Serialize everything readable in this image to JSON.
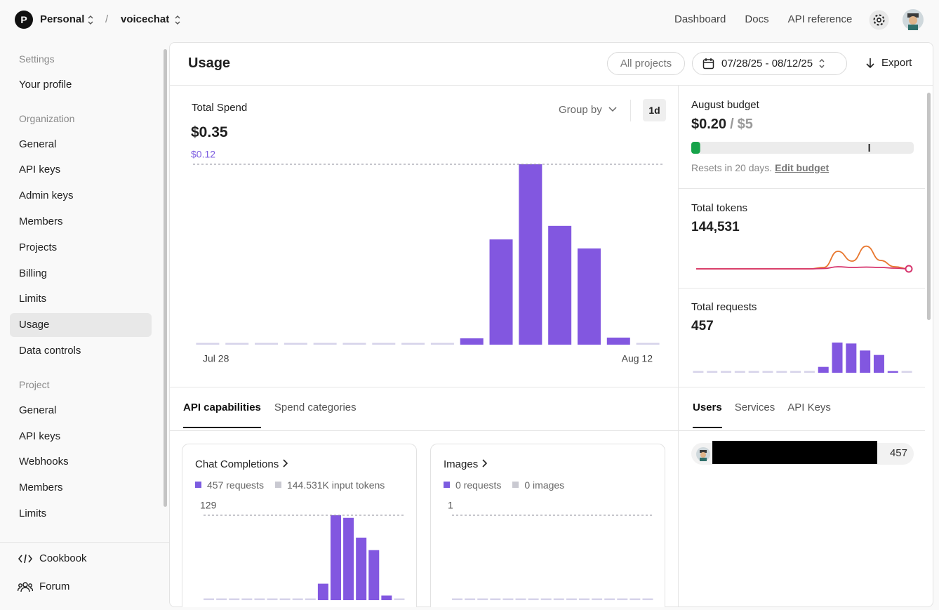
{
  "header": {
    "org_initial": "P",
    "org": "Personal",
    "separator": "/",
    "project": "voicechat",
    "nav": [
      "Dashboard",
      "Docs",
      "API reference"
    ]
  },
  "sidebar": {
    "sections": [
      {
        "label": "Settings",
        "items": [
          "Your profile"
        ]
      },
      {
        "label": "Organization",
        "items": [
          "General",
          "API keys",
          "Admin keys",
          "Members",
          "Projects",
          "Billing",
          "Limits",
          "Usage",
          "Data controls"
        ],
        "active": 7
      },
      {
        "label": "Project",
        "items": [
          "General",
          "API keys",
          "Webhooks",
          "Members",
          "Limits"
        ]
      }
    ],
    "footer": [
      "Cookbook",
      "Forum"
    ]
  },
  "usage": {
    "title": "Usage",
    "project_filter": "All projects",
    "date_range": "07/28/25 - 08/12/25",
    "export": "Export",
    "tabs": {
      "items": [
        "API capabilities",
        "Spend categories"
      ],
      "active": 0
    }
  },
  "budget": {
    "title": "August budget",
    "spent": {
      "value": 0.2,
      "label": "$0.20"
    },
    "separator": "/",
    "limit": {
      "value": 5,
      "label": "$5"
    },
    "alert": 4,
    "note": "Resets in 20 days.",
    "action": "Edit budget"
  },
  "users_panel": {
    "tabs": {
      "items": [
        "Users",
        "Services",
        "API Keys"
      ],
      "active": 0
    },
    "rows": [
      {
        "requests": "457"
      }
    ]
  },
  "chart_data": [
    {
      "type": "bar",
      "title": "Total Spend",
      "total": "$0.35",
      "group_by": "Group by",
      "interval": "1d",
      "categories": [
        "Jul 28",
        null,
        null,
        null,
        null,
        null,
        null,
        null,
        null,
        null,
        null,
        null,
        null,
        null,
        null,
        "Aug 12"
      ],
      "values": [
        0,
        0,
        0,
        0,
        0,
        0,
        0,
        0,
        0,
        0.0042,
        0.07,
        0.12,
        0.079,
        0.064,
        0.0047,
        0
      ],
      "color": "#8257e0",
      "zero_color": "#d6d3ea",
      "ylim": [
        0,
        0.12
      ],
      "yticks": [
        {
          "value": 0.12,
          "label": "$0.12"
        }
      ],
      "tick_color": "#7c5ce0"
    },
    {
      "type": "line",
      "title": "Total tokens",
      "total": "144,531",
      "ylim": [
        0,
        60000
      ],
      "series": [
        {
          "color": "#e8762d",
          "values": [
            0,
            0,
            0,
            0,
            0,
            0,
            0,
            0,
            0,
            3000,
            37500,
            16500,
            48500,
            18000,
            4500,
            0
          ]
        },
        {
          "color": "#d6336c",
          "values": [
            0,
            0,
            0,
            0,
            0,
            0,
            0,
            0,
            0,
            750,
            4500,
            3000,
            3750,
            3000,
            1500,
            0
          ]
        }
      ]
    },
    {
      "type": "bar",
      "title": "Total requests",
      "total": "457",
      "values": [
        0,
        0,
        0,
        0,
        0,
        0,
        0,
        0,
        0,
        25,
        129,
        125,
        95,
        76,
        7,
        0
      ],
      "color": "#8257e0",
      "zero_color": "#d6d3ea",
      "ylim": [
        0,
        129
      ]
    },
    {
      "type": "bar",
      "title": "Chat Completions",
      "legend": [
        {
          "label": "457 requests",
          "color": "#7c5ce0"
        },
        {
          "label": "144.531K input tokens",
          "color": "#c9c9d1"
        }
      ],
      "values": [
        0,
        0,
        0,
        0,
        0,
        0,
        0,
        0,
        0,
        25,
        129,
        125,
        95,
        76,
        7,
        0
      ],
      "color": "#8257e0",
      "zero_color": "#d6d3ea",
      "ylim": [
        0,
        129
      ],
      "yticks": [
        129
      ],
      "tick_color": "#555555"
    },
    {
      "type": "bar",
      "title": "Images",
      "legend": [
        {
          "label": "0 requests",
          "color": "#7c5ce0"
        },
        {
          "label": "0 images",
          "color": "#c9c9d1"
        }
      ],
      "values": [
        0,
        0,
        0,
        0,
        0,
        0,
        0,
        0,
        0,
        0,
        0,
        0,
        0,
        0,
        0,
        0
      ],
      "color": "#8257e0",
      "zero_color": "#d6d3ea",
      "ylim": [
        0,
        1
      ],
      "yticks": [
        1
      ],
      "tick_color": "#555555"
    }
  ]
}
